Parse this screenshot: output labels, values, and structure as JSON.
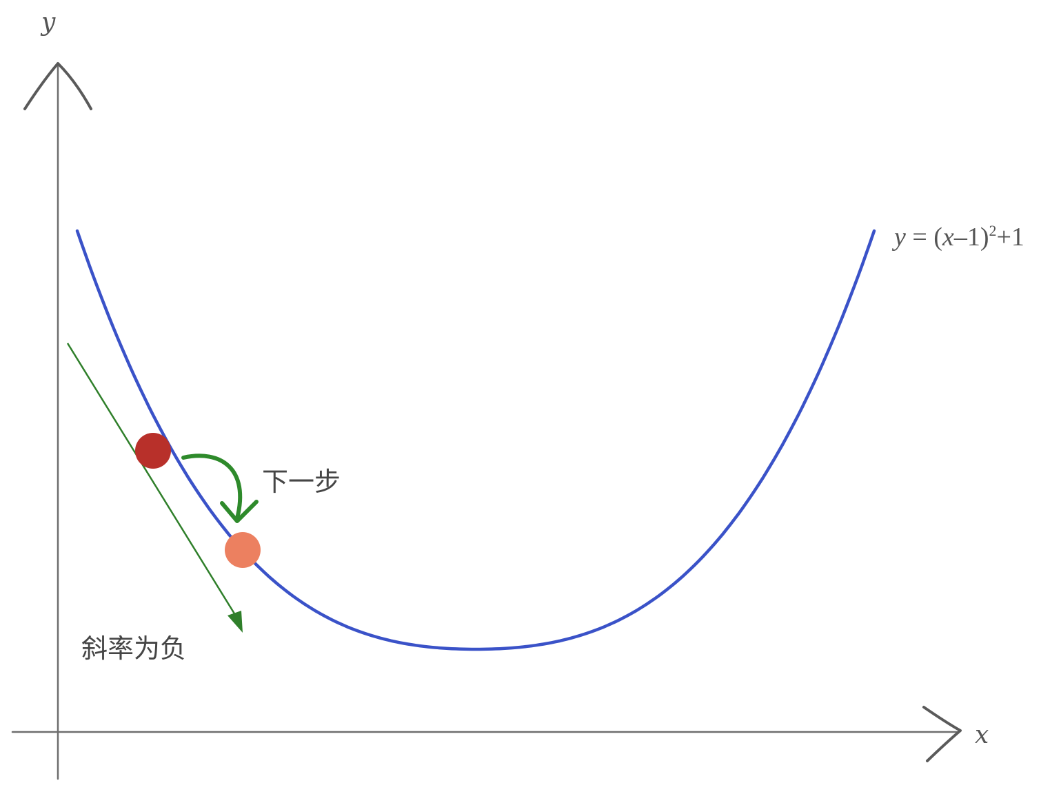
{
  "axes": {
    "x_label": "x",
    "y_label": "y"
  },
  "curve": {
    "equation_label": {
      "y": "y",
      "equals_open": " = (",
      "x": "x",
      "minus_one_close": "–1)",
      "exponent": "2",
      "plus_one": "+1"
    },
    "color": "#3a52c8"
  },
  "tangent": {
    "label": "斜率为负",
    "color": "#2f7f2a"
  },
  "step": {
    "label": "下一步",
    "color": "#2e8a2b"
  },
  "points": {
    "current_color": "#b8302a",
    "next_color": "#ec8060"
  }
}
